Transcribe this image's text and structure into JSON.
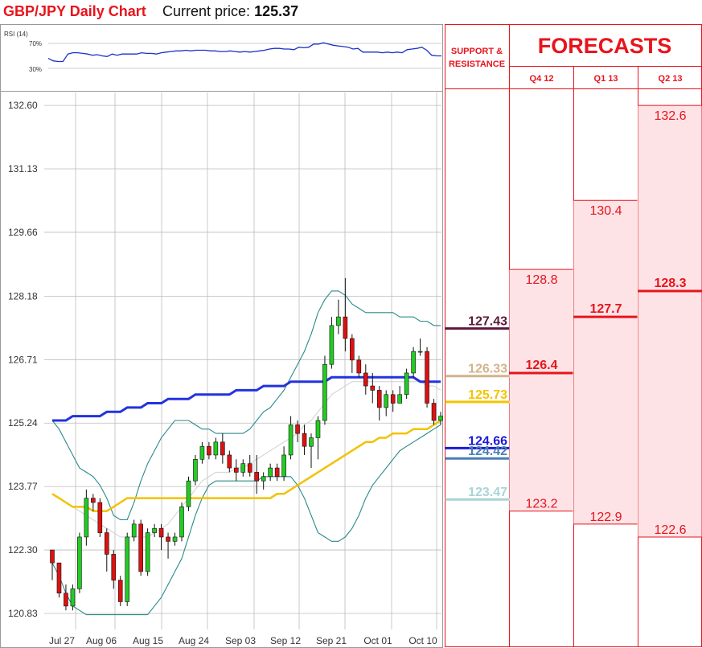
{
  "header": {
    "title": "GBP/JPY Daily Chart",
    "price_prefix": "Current price:",
    "price_value": "125.37"
  },
  "rsi": {
    "label": "RSI (14)",
    "levels": [
      "70%",
      "30%"
    ],
    "values": [
      46,
      42,
      41,
      41,
      53,
      55,
      55,
      54,
      53,
      51,
      52,
      50,
      49,
      53,
      51,
      53,
      53,
      53,
      53,
      55,
      54,
      54,
      53,
      55,
      56,
      57,
      58,
      58,
      59,
      58,
      59,
      59,
      59,
      58,
      58,
      57,
      57,
      58,
      57,
      56,
      57,
      56,
      57,
      58,
      59,
      61,
      62,
      62,
      61,
      61,
      60,
      64,
      63,
      64,
      69,
      69,
      71,
      69,
      67,
      66,
      65,
      64,
      61,
      62,
      56,
      56,
      56,
      56,
      55,
      56,
      55,
      56,
      55,
      60,
      61,
      62,
      64,
      59,
      51,
      50,
      50
    ]
  },
  "chart_data": {
    "type": "candlestick",
    "y_ticks": [
      "132.60",
      "131.13",
      "129.66",
      "128.18",
      "126.71",
      "125.24",
      "123.77",
      "122.30",
      "120.83"
    ],
    "ylim": [
      120.55,
      132.9
    ],
    "x_ticks": [
      "Jul 27",
      "Aug 06",
      "Aug 15",
      "Aug 24",
      "Sep 03",
      "Sep 12",
      "Sep 21",
      "Oct 01",
      "Oct 10"
    ],
    "candles": [
      [
        122.3,
        122.0,
        122.3,
        121.6
      ],
      [
        122.0,
        121.3,
        122.0,
        121.2
      ],
      [
        121.3,
        121.0,
        121.5,
        120.9
      ],
      [
        121.0,
        121.4,
        121.5,
        120.9
      ],
      [
        121.4,
        122.6,
        122.7,
        121.3
      ],
      [
        122.6,
        123.5,
        123.7,
        122.4
      ],
      [
        123.5,
        123.4,
        123.6,
        123.2
      ],
      [
        123.4,
        122.7,
        123.5,
        122.6
      ],
      [
        122.7,
        122.2,
        122.8,
        121.8
      ],
      [
        122.2,
        121.6,
        122.3,
        121.4
      ],
      [
        121.6,
        121.1,
        121.7,
        121.0
      ],
      [
        121.1,
        122.6,
        122.7,
        121.0
      ],
      [
        122.6,
        122.9,
        123.0,
        122.5
      ],
      [
        122.9,
        121.8,
        123.0,
        121.7
      ],
      [
        121.8,
        122.7,
        122.8,
        121.7
      ],
      [
        122.7,
        122.8,
        122.9,
        122.6
      ],
      [
        122.8,
        122.6,
        122.9,
        122.3
      ],
      [
        122.6,
        122.5,
        122.7,
        122.1
      ],
      [
        122.5,
        122.6,
        122.7,
        122.4
      ],
      [
        122.6,
        123.3,
        123.4,
        122.5
      ],
      [
        123.3,
        123.9,
        124.0,
        123.2
      ],
      [
        123.9,
        124.4,
        124.5,
        123.8
      ],
      [
        124.4,
        124.7,
        124.8,
        124.3
      ],
      [
        124.7,
        124.5,
        124.8,
        124.4
      ],
      [
        124.5,
        124.8,
        124.9,
        124.4
      ],
      [
        124.8,
        124.5,
        125.0,
        124.3
      ],
      [
        124.5,
        124.2,
        124.6,
        124.1
      ],
      [
        124.2,
        124.1,
        124.4,
        123.9
      ],
      [
        124.1,
        124.3,
        124.4,
        124.0
      ],
      [
        124.3,
        124.1,
        124.5,
        124.0
      ],
      [
        124.1,
        123.9,
        124.5,
        123.6
      ],
      [
        123.9,
        124.0,
        124.1,
        123.7
      ],
      [
        124.0,
        124.2,
        124.3,
        123.9
      ],
      [
        124.2,
        124.0,
        124.3,
        123.9
      ],
      [
        124.0,
        124.5,
        124.7,
        123.9
      ],
      [
        124.5,
        125.2,
        125.4,
        124.4
      ],
      [
        125.2,
        125.0,
        125.3,
        124.8
      ],
      [
        125.0,
        124.7,
        125.2,
        124.5
      ],
      [
        124.7,
        124.9,
        125.0,
        124.2
      ],
      [
        124.9,
        125.3,
        125.4,
        124.4
      ],
      [
        125.3,
        126.6,
        126.8,
        125.2
      ],
      [
        126.6,
        127.5,
        127.7,
        126.5
      ],
      [
        127.5,
        127.7,
        128.1,
        127.3
      ],
      [
        127.7,
        127.2,
        128.6,
        126.9
      ],
      [
        127.2,
        126.7,
        127.3,
        126.4
      ],
      [
        126.7,
        126.4,
        126.8,
        126.3
      ],
      [
        126.4,
        126.1,
        126.6,
        125.9
      ],
      [
        126.1,
        126.0,
        126.4,
        125.7
      ],
      [
        126.0,
        125.6,
        126.1,
        125.3
      ],
      [
        125.6,
        125.9,
        126.0,
        125.4
      ],
      [
        125.9,
        125.7,
        126.0,
        125.5
      ],
      [
        125.7,
        125.9,
        126.1,
        125.7
      ],
      [
        125.9,
        126.4,
        126.5,
        125.8
      ],
      [
        126.4,
        126.9,
        127.0,
        126.3
      ],
      [
        126.9,
        126.9,
        127.2,
        126.8
      ],
      [
        126.9,
        125.7,
        127.0,
        125.6
      ],
      [
        125.7,
        125.3,
        125.8,
        125.2
      ],
      [
        125.3,
        125.4,
        125.5,
        125.2
      ]
    ],
    "sma200": [
      123.6,
      123.5,
      123.4,
      123.3,
      123.3,
      123.3,
      123.2,
      123.2,
      123.2,
      123.3,
      123.4,
      123.5,
      123.5,
      123.5,
      123.5,
      123.5,
      123.5,
      123.5,
      123.5,
      123.5,
      123.5,
      123.5,
      123.5,
      123.5,
      123.5,
      123.5,
      123.5,
      123.5,
      123.5,
      123.5,
      123.5,
      123.5,
      123.5,
      123.6,
      123.6,
      123.7,
      123.8,
      123.9,
      124.0,
      124.1,
      124.2,
      124.3,
      124.4,
      124.5,
      124.6,
      124.7,
      124.8,
      124.8,
      124.9,
      124.9,
      125.0,
      125.0,
      125.0,
      125.1,
      125.1,
      125.1,
      125.2,
      125.3
    ],
    "sma100": [
      125.3,
      125.3,
      125.3,
      125.4,
      125.4,
      125.4,
      125.4,
      125.4,
      125.5,
      125.5,
      125.5,
      125.6,
      125.6,
      125.6,
      125.7,
      125.7,
      125.7,
      125.8,
      125.8,
      125.8,
      125.8,
      125.9,
      125.9,
      125.9,
      125.9,
      125.9,
      125.9,
      126.0,
      126.0,
      126.0,
      126.0,
      126.1,
      126.1,
      126.1,
      126.1,
      126.2,
      126.2,
      126.2,
      126.2,
      126.2,
      126.2,
      126.3,
      126.3,
      126.3,
      126.3,
      126.3,
      126.3,
      126.3,
      126.3,
      126.3,
      126.3,
      126.3,
      126.3,
      126.3,
      126.2,
      126.2,
      126.2,
      126.2
    ],
    "bb_upper": [
      125.3,
      125.1,
      124.8,
      124.5,
      124.2,
      124.1,
      124.0,
      123.8,
      123.5,
      123.1,
      123.0,
      123.0,
      123.4,
      123.9,
      124.3,
      124.6,
      124.9,
      125.1,
      125.3,
      125.3,
      125.3,
      125.2,
      125.1,
      125.1,
      125.0,
      125.0,
      125.0,
      125.0,
      125.0,
      125.1,
      125.3,
      125.5,
      125.6,
      125.8,
      126.0,
      126.3,
      126.6,
      126.9,
      127.3,
      127.8,
      128.1,
      128.3,
      128.3,
      128.2,
      128.0,
      127.9,
      127.8,
      127.8,
      127.8,
      127.8,
      127.8,
      127.7,
      127.7,
      127.7,
      127.6,
      127.6,
      127.5,
      127.5
    ],
    "bb_lower": [
      122.0,
      121.7,
      121.3,
      121.0,
      120.9,
      120.8,
      120.8,
      120.8,
      120.8,
      120.8,
      120.8,
      120.8,
      120.8,
      120.8,
      120.8,
      121.0,
      121.2,
      121.5,
      121.8,
      122.1,
      122.6,
      123.1,
      123.5,
      123.8,
      123.9,
      123.9,
      123.9,
      123.9,
      123.9,
      123.9,
      123.9,
      124.0,
      124.0,
      124.0,
      124.0,
      124.0,
      123.8,
      123.5,
      123.1,
      122.7,
      122.6,
      122.5,
      122.5,
      122.6,
      122.8,
      123.1,
      123.5,
      123.8,
      124.0,
      124.2,
      124.4,
      124.6,
      124.7,
      124.8,
      124.9,
      125.0,
      125.1,
      125.2
    ],
    "bb_mid": [
      123.6,
      123.5,
      123.4,
      123.3,
      123.2,
      123.1,
      123.0,
      122.9,
      122.8,
      122.7,
      122.6,
      122.6,
      122.6,
      122.6,
      122.6,
      122.7,
      122.8,
      122.9,
      123.1,
      123.3,
      123.5,
      123.7,
      123.9,
      124.0,
      124.1,
      124.1,
      124.1,
      124.2,
      124.2,
      124.3,
      124.4,
      124.5,
      124.6,
      124.7,
      124.8,
      124.9,
      125.0,
      125.2,
      125.3,
      125.5,
      125.7,
      125.9,
      126.0,
      126.1,
      126.2,
      126.2,
      126.2,
      126.2,
      126.2,
      126.2,
      126.2,
      126.2,
      126.2,
      126.2,
      126.2,
      126.1,
      126.1,
      126.0
    ]
  },
  "support_resistance": {
    "header_line1": "SUPPORT &",
    "header_line2": "RESISTANCE",
    "levels": [
      {
        "value": "127.43",
        "color": "#5c1a3a"
      },
      {
        "value": "126.33",
        "color": "#d2b48c"
      },
      {
        "value": "125.73",
        "color": "#f5c400"
      },
      {
        "value": "124.66",
        "color": "#1a1ad8"
      },
      {
        "value": "124.42",
        "color": "#4a7fb5"
      },
      {
        "value": "123.47",
        "color": "#a9d4d6"
      }
    ]
  },
  "forecasts": {
    "title": "FORECASTS",
    "columns": [
      {
        "label": "Q4 12",
        "high": "128.8",
        "mid": "126.4",
        "low": "123.2"
      },
      {
        "label": "Q1 13",
        "high": "130.4",
        "mid": "127.7",
        "low": "122.9"
      },
      {
        "label": "Q2 13",
        "high": "132.6",
        "mid": "128.3",
        "low": "122.6"
      }
    ]
  }
}
